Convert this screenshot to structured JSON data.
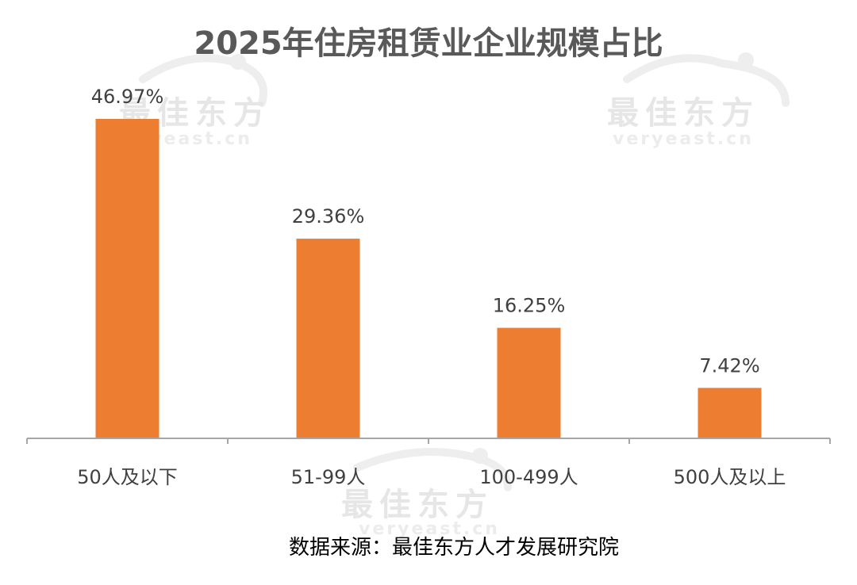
{
  "chart_data": {
    "type": "bar",
    "title": "2025年住房租赁业企业规模占比",
    "categories": [
      "50人及以下",
      "51-99人",
      "100-499人",
      "500人及以上"
    ],
    "values": [
      46.97,
      29.36,
      16.25,
      7.42
    ],
    "value_labels": [
      "46.97%",
      "29.36%",
      "16.25%",
      "7.42%"
    ],
    "unit": "%",
    "ylim": [
      0,
      50
    ],
    "xlabel": "",
    "ylabel": "",
    "grid": false,
    "legend": "none",
    "bar_color": "#ED7D31",
    "axis_color": "#A6A6A6"
  },
  "source": "数据来源：最佳东方人才发展研究院",
  "watermark": {
    "brand_cn": "最佳东方",
    "brand_en": "veryeast.cn"
  }
}
